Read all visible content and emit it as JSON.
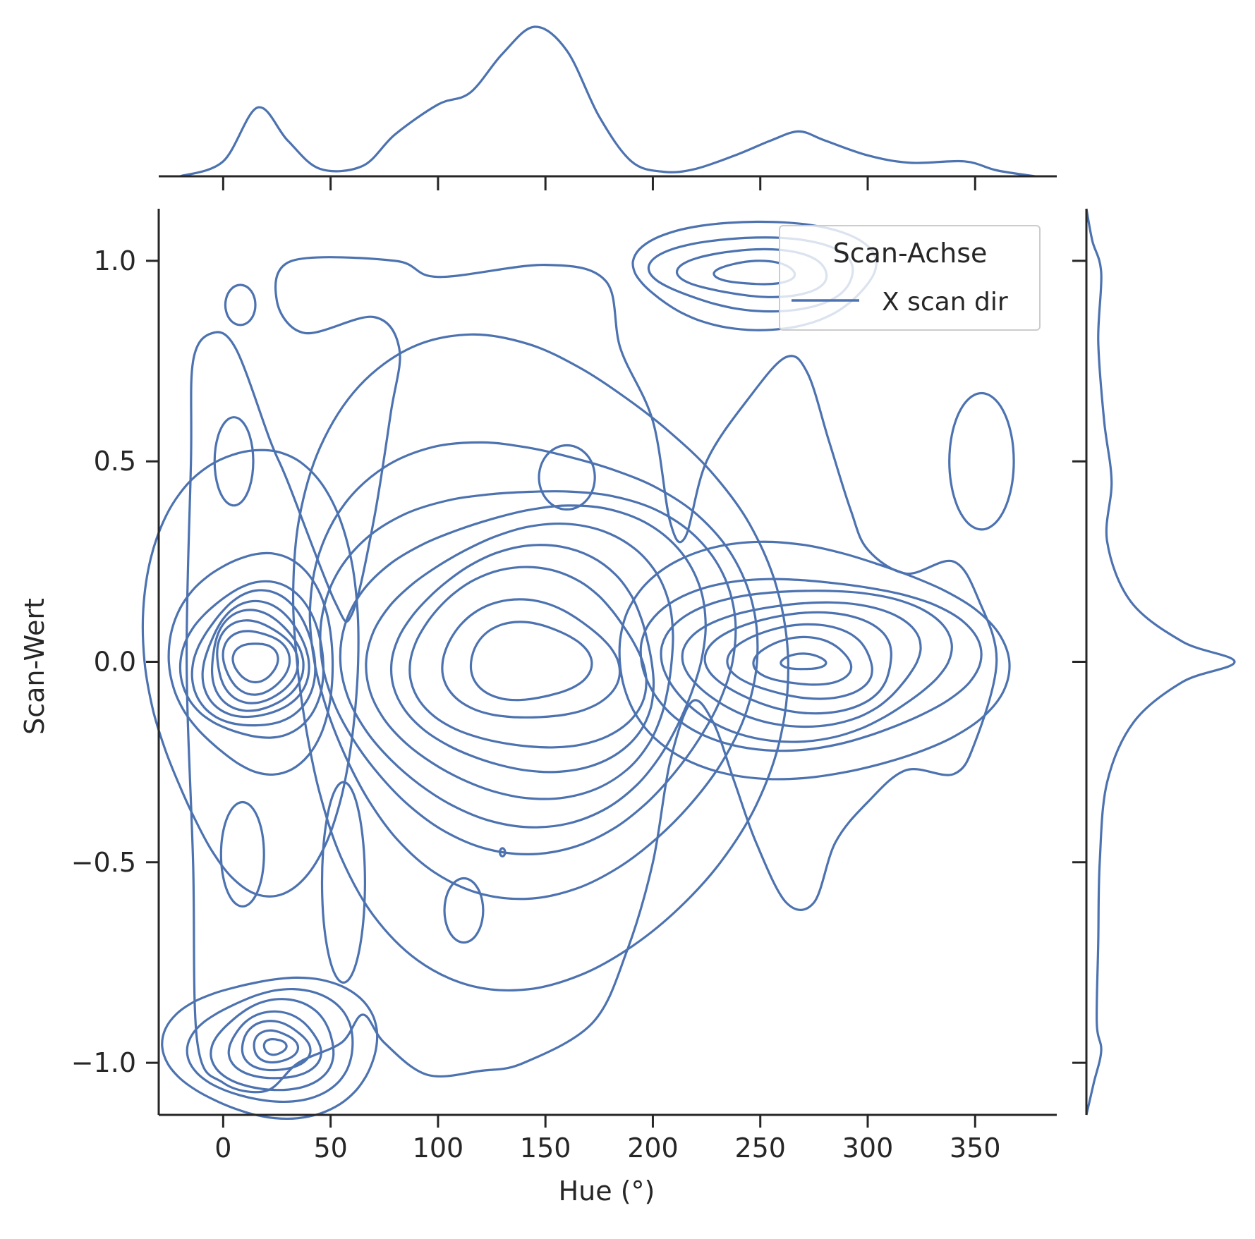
{
  "colors": {
    "series": "#4c72b0",
    "axis": "#262626",
    "text": "#262626",
    "legend_border": "#cccccc"
  },
  "chart_data": {
    "type": "kde-joint",
    "xlabel": "Hue (°)",
    "ylabel": "Scan-Wert",
    "xlim": [
      -30,
      388
    ],
    "ylim": [
      -1.13,
      1.13
    ],
    "xticks": [
      0,
      50,
      100,
      150,
      200,
      250,
      300,
      350
    ],
    "xtick_labels": [
      "0",
      "50",
      "100",
      "150",
      "200",
      "250",
      "300",
      "350"
    ],
    "yticks": [
      -1.0,
      -0.5,
      0.0,
      0.5,
      1.0
    ],
    "ytick_labels": [
      "−1.0",
      "−0.5",
      "0.0",
      "0.5",
      "1.0"
    ],
    "grid": false,
    "legend": {
      "title": "Scan-Achse",
      "entries": [
        "X scan dir"
      ],
      "placement": "top-right"
    },
    "series": [
      {
        "name": "X scan dir",
        "contour_clusters": [
          {
            "cx": 15,
            "cy": 0.0,
            "rx": [
              10,
              15,
              19,
              22,
              25,
              28,
              32,
              37,
              50
            ],
            "ry": [
              0.05,
              0.08,
              0.1,
              0.12,
              0.14,
              0.17,
              0.2,
              0.28,
              0.55
            ]
          },
          {
            "cx": 24,
            "cy": -0.96,
            "rx": [
              5,
              10,
              16,
              22,
              29,
              38,
              48
            ],
            "ry": [
              0.02,
              0.04,
              0.06,
              0.08,
              0.11,
              0.14,
              0.18
            ]
          },
          {
            "cx": 142,
            "cy": 0.0,
            "rx": [
              27,
              40,
              55,
              63,
              73,
              83,
              92,
              100,
              115
            ],
            "ry": [
              0.1,
              0.15,
              0.22,
              0.27,
              0.33,
              0.4,
              0.47,
              0.58,
              0.8
            ]
          },
          {
            "cx": 270,
            "cy": 0.0,
            "rx": [
              10,
              22,
              34,
              45,
              56,
              66,
              76,
              88
            ],
            "ry": [
              0.02,
              0.06,
              0.09,
              0.12,
              0.15,
              0.19,
              0.22,
              0.3
            ]
          },
          {
            "cx": 248,
            "cy": 0.97,
            "rx": [
              18,
              34,
              48,
              58
            ],
            "ry": [
              0.03,
              0.06,
              0.09,
              0.13
            ]
          }
        ],
        "small_contours": [
          {
            "cx": 8,
            "cy": 0.89,
            "rx": 7,
            "ry": 0.05
          },
          {
            "cx": 5,
            "cy": 0.5,
            "rx": 9,
            "ry": 0.11
          },
          {
            "cx": 9,
            "cy": -0.48,
            "rx": 10,
            "ry": 0.13
          },
          {
            "cx": 112,
            "cy": -0.62,
            "rx": 9,
            "ry": 0.08
          },
          {
            "cx": 160,
            "cy": 0.46,
            "rx": 13,
            "ry": 0.08
          },
          {
            "cx": 130,
            "cy": -0.475,
            "rx": 1.2,
            "ry": 0.01
          },
          {
            "cx": 353,
            "cy": 0.5,
            "rx": 15,
            "ry": 0.17
          },
          {
            "cx": 56,
            "cy": -0.55,
            "rx": 10,
            "ry": 0.25
          }
        ],
        "outer_contour_points": [
          [
            -14,
            0.75
          ],
          [
            -5,
            0.82
          ],
          [
            6,
            0.78
          ],
          [
            22,
            0.55
          ],
          [
            30,
            0.45
          ],
          [
            52,
            0.15
          ],
          [
            60,
            0.12
          ],
          [
            70,
            0.35
          ],
          [
            78,
            0.62
          ],
          [
            82,
            0.78
          ],
          [
            70,
            0.86
          ],
          [
            38,
            0.82
          ],
          [
            25,
            0.9
          ],
          [
            32,
            1.0
          ],
          [
            80,
            1.0
          ],
          [
            100,
            0.96
          ],
          [
            150,
            0.99
          ],
          [
            178,
            0.95
          ],
          [
            185,
            0.78
          ],
          [
            200,
            0.6
          ],
          [
            208,
            0.35
          ],
          [
            215,
            0.31
          ],
          [
            225,
            0.5
          ],
          [
            245,
            0.66
          ],
          [
            262,
            0.76
          ],
          [
            272,
            0.72
          ],
          [
            282,
            0.55
          ],
          [
            292,
            0.38
          ],
          [
            300,
            0.28
          ],
          [
            318,
            0.22
          ],
          [
            340,
            0.25
          ],
          [
            352,
            0.15
          ],
          [
            360,
            0.0
          ],
          [
            350,
            -0.2
          ],
          [
            340,
            -0.28
          ],
          [
            318,
            -0.27
          ],
          [
            300,
            -0.35
          ],
          [
            285,
            -0.45
          ],
          [
            275,
            -0.6
          ],
          [
            262,
            -0.6
          ],
          [
            248,
            -0.45
          ],
          [
            238,
            -0.3
          ],
          [
            228,
            -0.15
          ],
          [
            218,
            -0.1
          ],
          [
            208,
            -0.25
          ],
          [
            200,
            -0.5
          ],
          [
            188,
            -0.72
          ],
          [
            172,
            -0.9
          ],
          [
            140,
            -1.0
          ],
          [
            120,
            -1.02
          ],
          [
            95,
            -1.03
          ],
          [
            75,
            -0.95
          ],
          [
            65,
            -0.88
          ],
          [
            55,
            -0.95
          ],
          [
            35,
            -1.0
          ],
          [
            20,
            -1.07
          ],
          [
            0,
            -1.05
          ],
          [
            -12,
            -0.95
          ],
          [
            -14,
            -0.5
          ],
          [
            -17,
            0.0
          ],
          [
            -15,
            0.5
          ]
        ],
        "marginal_x": {
          "x": [
            -20,
            0,
            16,
            30,
            45,
            65,
            80,
            100,
            115,
            130,
            145,
            160,
            175,
            190,
            205,
            220,
            240,
            255,
            268,
            280,
            300,
            320,
            345,
            360,
            378
          ],
          "density": [
            0.0,
            0.1,
            0.46,
            0.24,
            0.05,
            0.07,
            0.28,
            0.48,
            0.56,
            0.82,
            1.0,
            0.84,
            0.4,
            0.1,
            0.03,
            0.05,
            0.15,
            0.24,
            0.3,
            0.24,
            0.14,
            0.09,
            0.1,
            0.04,
            0.0
          ]
        },
        "marginal_y": {
          "y": [
            -1.13,
            -1.05,
            -0.97,
            -0.9,
            -0.7,
            -0.5,
            -0.3,
            -0.15,
            -0.05,
            0.0,
            0.05,
            0.15,
            0.3,
            0.45,
            0.6,
            0.8,
            0.97,
            1.05,
            1.13
          ],
          "density": [
            0.0,
            0.05,
            0.1,
            0.07,
            0.08,
            0.09,
            0.14,
            0.32,
            0.65,
            1.0,
            0.65,
            0.3,
            0.14,
            0.17,
            0.12,
            0.08,
            0.1,
            0.04,
            0.0
          ]
        }
      }
    ]
  }
}
